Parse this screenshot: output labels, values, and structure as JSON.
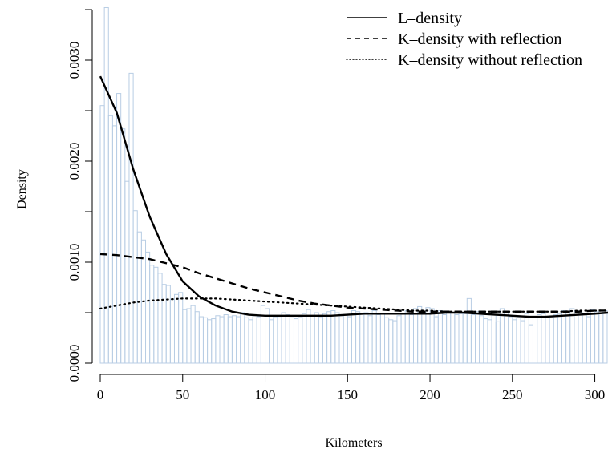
{
  "chart_data": {
    "type": "histogram_with_density_lines",
    "xlabel": "Kilometers",
    "ylabel": "Density",
    "xlim": [
      0,
      308
    ],
    "ylim": [
      0,
      0.0035
    ],
    "x_ticks": [
      0,
      50,
      100,
      150,
      200,
      250,
      300
    ],
    "x_tick_labels": [
      "0",
      "50",
      "100",
      "150",
      "200",
      "250",
      "300"
    ],
    "y_ticks": [
      0,
      0.001,
      0.002,
      0.003
    ],
    "y_tick_labels": [
      "0.0000",
      "0.0010",
      "0.0020",
      "0.0030"
    ],
    "grid": false,
    "legend_position": "top-right",
    "histogram": {
      "bin_width": 2.5,
      "color": "#b8cde4",
      "heights": [
        0.00255,
        0.00352,
        0.00245,
        0.00235,
        0.00267,
        0.00232,
        0.0018,
        0.00287,
        0.00151,
        0.0013,
        0.00122,
        0.0011,
        0.00097,
        0.00095,
        0.00089,
        0.00078,
        0.00077,
        0.00063,
        0.00068,
        0.0007,
        0.00053,
        0.00054,
        0.00057,
        0.00051,
        0.00046,
        0.00045,
        0.00043,
        0.00044,
        0.00047,
        0.00046,
        0.00048,
        0.00046,
        0.00047,
        0.00046,
        0.0005,
        0.00045,
        0.00043,
        0.00047,
        0.00046,
        0.00057,
        0.00054,
        0.00043,
        0.00046,
        0.00045,
        0.0005,
        0.00048,
        0.00045,
        0.00044,
        0.00046,
        0.00049,
        0.00053,
        0.00047,
        0.0005,
        0.00046,
        0.00049,
        0.00051,
        0.00052,
        0.0005,
        0.00047,
        0.00048,
        0.00046,
        0.00052,
        0.00051,
        0.00049,
        0.0005,
        0.00047,
        0.00052,
        0.00048,
        0.00049,
        0.00045,
        0.00043,
        0.00042,
        0.00047,
        0.00049,
        0.00052,
        0.00048,
        0.00054,
        0.00056,
        0.0005,
        0.00055,
        0.00054,
        0.00046,
        0.00052,
        0.00048,
        0.00051,
        0.0005,
        0.00048,
        0.00049,
        0.00049,
        0.00064,
        0.00048,
        0.00051,
        0.00047,
        0.00044,
        0.00043,
        0.00048,
        0.00041,
        0.00054,
        0.00051,
        0.00046,
        0.00043,
        0.00045,
        0.00042,
        0.00049,
        0.00038,
        0.00046,
        0.00048,
        0.00049,
        0.00046,
        0.00045,
        0.00048,
        0.00049,
        0.00052,
        0.00051,
        0.00054,
        0.00052,
        0.0005,
        0.00049,
        0.00046,
        0.00053,
        0.00051,
        0.00049,
        0.00052
      ]
    },
    "series": [
      {
        "name": "L–density",
        "style": "solid",
        "x": [
          0,
          10,
          20,
          30,
          40,
          50,
          60,
          70,
          80,
          90,
          100,
          110,
          120,
          130,
          140,
          150,
          160,
          170,
          180,
          190,
          200,
          210,
          220,
          230,
          240,
          250,
          260,
          270,
          280,
          290,
          300,
          308
        ],
        "y": [
          0.00284,
          0.00248,
          0.00192,
          0.00145,
          0.00108,
          0.00081,
          0.00066,
          0.00057,
          0.00051,
          0.00048,
          0.00047,
          0.00047,
          0.00047,
          0.00047,
          0.00047,
          0.00048,
          0.00049,
          0.00049,
          0.00049,
          0.00049,
          0.00049,
          0.0005,
          0.0005,
          0.00049,
          0.00048,
          0.00047,
          0.00046,
          0.00046,
          0.00047,
          0.00048,
          0.00049,
          0.0005
        ]
      },
      {
        "name": "K–density with reflection",
        "style": "dashed",
        "x": [
          0,
          10,
          20,
          30,
          40,
          50,
          60,
          70,
          80,
          90,
          100,
          110,
          120,
          130,
          140,
          150,
          160,
          170,
          180,
          190,
          200,
          210,
          220,
          230,
          240,
          250,
          260,
          270,
          280,
          290,
          300,
          308
        ],
        "y": [
          0.00108,
          0.00107,
          0.00105,
          0.00103,
          0.00099,
          0.00095,
          0.00089,
          0.00084,
          0.00079,
          0.00074,
          0.0007,
          0.00066,
          0.00062,
          0.00059,
          0.00057,
          0.00055,
          0.00054,
          0.00053,
          0.00052,
          0.00051,
          0.00051,
          0.00051,
          0.00051,
          0.00051,
          0.00051,
          0.00051,
          0.00051,
          0.00051,
          0.00051,
          0.00051,
          0.00052,
          0.00052
        ]
      },
      {
        "name": "K–density without reflection",
        "style": "dotted",
        "x": [
          0,
          10,
          20,
          30,
          40,
          50,
          60,
          70,
          80,
          90,
          100,
          110,
          120,
          130,
          140,
          150,
          160,
          170,
          180,
          190,
          200,
          210,
          220,
          230,
          240,
          250,
          260,
          270,
          280,
          290,
          300,
          308
        ],
        "y": [
          0.00054,
          0.00057,
          0.0006,
          0.00062,
          0.00063,
          0.00064,
          0.00064,
          0.00064,
          0.00063,
          0.00062,
          0.00061,
          0.0006,
          0.00059,
          0.00058,
          0.00057,
          0.00056,
          0.00055,
          0.00054,
          0.00053,
          0.00052,
          0.00052,
          0.00051,
          0.00051,
          0.00051,
          0.00051,
          0.00051,
          0.00051,
          0.00051,
          0.00051,
          0.00052,
          0.00052,
          0.00052
        ]
      }
    ]
  }
}
